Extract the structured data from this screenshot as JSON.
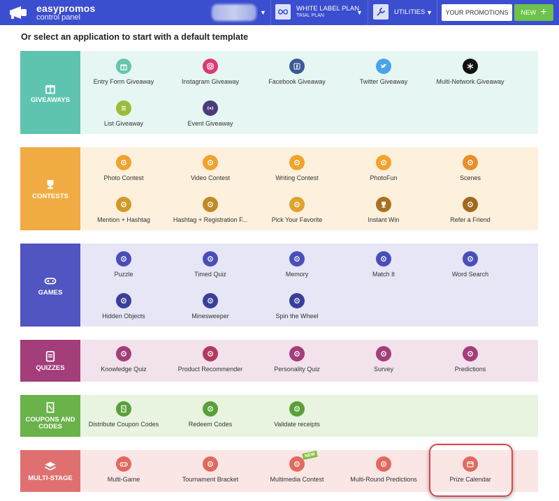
{
  "topbar": {
    "brand_name": "easypromos",
    "brand_sub": "control panel",
    "plan_title": "WHITE LABEL PLAN",
    "plan_sub": "TRIAL PLAN",
    "utilities_label": "UTILITIES",
    "promotions_label": "YOUR PROMOTIONS",
    "new_label": "NEW",
    "colors": {
      "bar": "#3b4ed0",
      "new_button": "#6cc24a"
    }
  },
  "heading": "Or select an application to start with a default template",
  "sections": [
    {
      "key": "giveaways",
      "label": "GIVEAWAYS",
      "icon": "gift-icon",
      "color": "#5ec4b0",
      "bg": "#e6f6f2",
      "items": [
        {
          "label": "Entry Form Giveaway",
          "icon": "gift-icon",
          "color": "#64c5ae"
        },
        {
          "label": "Instagram Giveaway",
          "icon": "instagram-icon",
          "color": "#d93a7a"
        },
        {
          "label": "Facebook Giveaway",
          "icon": "facebook-icon",
          "color": "#3b5998"
        },
        {
          "label": "Twitter Giveaway",
          "icon": "twitter-icon",
          "color": "#4aa3e8"
        },
        {
          "label": "Multi-Network Giveaway",
          "icon": "asterisk-icon",
          "color": "#111111"
        },
        {
          "label": "List Giveaway",
          "icon": "list-icon",
          "color": "#9bbc3a"
        },
        {
          "label": "Event Giveaway",
          "icon": "broadcast-icon",
          "color": "#4a3c7a"
        }
      ]
    },
    {
      "key": "contests",
      "label": "CONTESTS",
      "icon": "trophy-icon",
      "color": "#f0ac42",
      "bg": "#fdf0dd",
      "items": [
        {
          "label": "Photo Contest",
          "icon": "camera-icon",
          "color": "#f0a32e"
        },
        {
          "label": "Video Contest",
          "icon": "video-icon",
          "color": "#f0a32e"
        },
        {
          "label": "Writing Contest",
          "icon": "pen-icon",
          "color": "#f0a32e"
        },
        {
          "label": "PhotoFun",
          "icon": "photofun-icon",
          "color": "#f0a32e"
        },
        {
          "label": "Scenes",
          "icon": "scenes-icon",
          "color": "#e88f2a"
        },
        {
          "label": "Mention + Hashtag",
          "icon": "hashtag-icon",
          "color": "#d09a2a"
        },
        {
          "label": "Hashtag + Registration F...",
          "icon": "hashtag-form-icon",
          "color": "#c08a24"
        },
        {
          "label": "Pick Your Favorite",
          "icon": "thumbs-up-icon",
          "color": "#e0a22e"
        },
        {
          "label": "Instant Win",
          "icon": "trophy-icon",
          "color": "#a87220"
        },
        {
          "label": "Refer a Friend",
          "icon": "refer-icon",
          "color": "#a06a1e"
        }
      ]
    },
    {
      "key": "games",
      "label": "GAMES",
      "icon": "gamepad-icon",
      "color": "#5055c1",
      "bg": "#e6e6f6",
      "items": [
        {
          "label": "Puzzle",
          "icon": "puzzle-icon",
          "color": "#4a4fb8"
        },
        {
          "label": "Timed Quiz",
          "icon": "timer-icon",
          "color": "#4a4fb8"
        },
        {
          "label": "Memory",
          "icon": "memory-icon",
          "color": "#4a4fb8"
        },
        {
          "label": "Match It",
          "icon": "match-icon",
          "color": "#4a4fb8"
        },
        {
          "label": "Word Search",
          "icon": "word-search-icon",
          "color": "#4a4fb8"
        },
        {
          "label": "Hidden Objects",
          "icon": "magnifier-icon",
          "color": "#3a3f9a"
        },
        {
          "label": "Minesweeper",
          "icon": "mine-icon",
          "color": "#3a3f9a"
        },
        {
          "label": "Spin the Wheel",
          "icon": "wheel-icon",
          "color": "#3a3f9a"
        }
      ]
    },
    {
      "key": "quizzes",
      "label": "QUIZZES",
      "icon": "clipboard-icon",
      "color": "#a33e7a",
      "bg": "#f2e2ec",
      "items": [
        {
          "label": "Knowledge Quiz",
          "icon": "brain-icon",
          "color": "#a33e7a"
        },
        {
          "label": "Product Recommender",
          "icon": "recommender-icon",
          "color": "#b23a5e"
        },
        {
          "label": "Personality Quiz",
          "icon": "personality-icon",
          "color": "#a33e7a"
        },
        {
          "label": "Survey",
          "icon": "survey-icon",
          "color": "#a33e7a"
        },
        {
          "label": "Predictions",
          "icon": "predictions-icon",
          "color": "#a33e7a"
        }
      ]
    },
    {
      "key": "coupons",
      "label": "COUPONS AND CODES",
      "icon": "coupon-icon",
      "color": "#6ab24a",
      "bg": "#e8f4e0",
      "items": [
        {
          "label": "Distribute Coupon Codes",
          "icon": "coupon-icon",
          "color": "#5aa03a"
        },
        {
          "label": "Redeem Codes",
          "icon": "redeem-icon",
          "color": "#5aa03a"
        },
        {
          "label": "Validate receipts",
          "icon": "receipt-icon",
          "color": "#5aa03a"
        }
      ]
    },
    {
      "key": "multistage",
      "label": "MULTI-STAGE",
      "icon": "layers-icon",
      "color": "#e07070",
      "bg": "#fbe6e6",
      "items": [
        {
          "label": "Multi-Game",
          "icon": "gamepad-icon",
          "color": "#e06a5e"
        },
        {
          "label": "Tournament Bracket",
          "icon": "bracket-icon",
          "color": "#e06a5e"
        },
        {
          "label": "Multimedia Contest",
          "icon": "multimedia-icon",
          "color": "#e06a5e",
          "badge": "NEW"
        },
        {
          "label": "Multi-Round Predictions",
          "icon": "multi-predictions-icon",
          "color": "#e06a5e"
        },
        {
          "label": "Prize Calendar",
          "icon": "calendar-icon",
          "color": "#e06a5e"
        }
      ]
    }
  ]
}
